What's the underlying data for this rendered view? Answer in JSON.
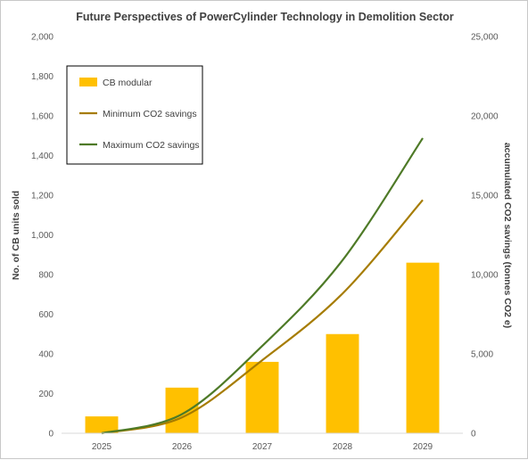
{
  "chart_data": {
    "type": "bar",
    "title": "Future Perspectives of PowerCylinder Technology in Demolition Sector",
    "categories": [
      "2025",
      "2026",
      "2027",
      "2028",
      "2029"
    ],
    "ylabel": "No. of CB units sold",
    "y2label": "accumulated CO2 savings (tonnes CO2 e)",
    "ylim": [
      0,
      2000
    ],
    "y2lim": [
      0,
      25000
    ],
    "yticks": [
      "0",
      "200",
      "400",
      "600",
      "800",
      "1,000",
      "1,200",
      "1,400",
      "1,600",
      "1,800",
      "2,000"
    ],
    "y2ticks": [
      "0",
      "5,000",
      "10,000",
      "15,000",
      "20,000",
      "25,000"
    ],
    "grid": false,
    "legend_position": "top-left",
    "series": [
      {
        "name": "CB modular",
        "type": "bar",
        "axis": "left",
        "color": "#FFC000",
        "values": [
          85,
          230,
          360,
          500,
          860
        ]
      },
      {
        "name": "Minimum CO2 savings",
        "type": "line",
        "axis": "right",
        "color": "#A67C00",
        "values": [
          0,
          1000,
          4600,
          8800,
          14700
        ]
      },
      {
        "name": "Maximum CO2 savings",
        "type": "line",
        "axis": "right",
        "color": "#4E7A27",
        "values": [
          0,
          1200,
          5500,
          10900,
          18600
        ]
      }
    ]
  }
}
